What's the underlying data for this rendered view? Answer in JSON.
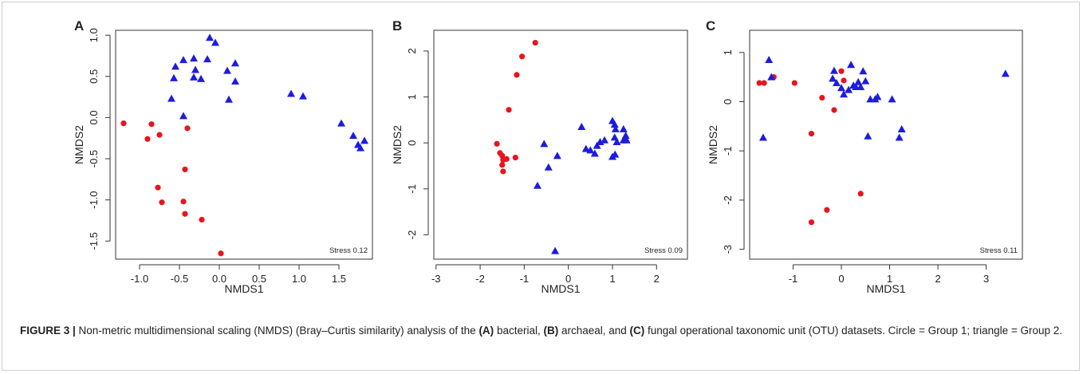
{
  "colors": {
    "group1": "#e8141e",
    "group2": "#1c1ce0"
  },
  "caption": {
    "figure_label": "FIGURE 3 |",
    "p1": " Non-metric multidimensional scaling (NMDS) (Bray–Curtis similarity) analysis of the ",
    "a": "(A)",
    "p2": " bacterial, ",
    "b": "(B)",
    "p3": " archaeal, and ",
    "c": "(C)",
    "p4": " fungal operational taxonomic unit (OTU) datasets. Circle = Group 1; triangle = Group 2."
  },
  "chart_data": [
    {
      "type": "scatter",
      "panel": "A",
      "xlabel": "NMDS1",
      "ylabel": "NMDS2",
      "annotation": "Stress 0.12",
      "xlim": [
        -1.3,
        1.92
      ],
      "ylim": [
        -1.72,
        1.06
      ],
      "xticks": [
        -1.0,
        -0.5,
        0.0,
        0.5,
        1.0,
        1.5
      ],
      "xtick_labels": [
        "-1.0",
        "-0.5",
        "0.0",
        "0.5",
        "1.0",
        "1.5"
      ],
      "yticks": [
        -1.5,
        -1.0,
        -0.5,
        0.0,
        0.5,
        1.0
      ],
      "ytick_labels": [
        "-1.5",
        "-1.0",
        "-0.5",
        "0.0",
        "0.5",
        "1.0"
      ],
      "series": [
        {
          "name": "Group 1",
          "marker": "circle",
          "points": [
            [
              -1.2,
              -0.07
            ],
            [
              -0.85,
              -0.08
            ],
            [
              -0.9,
              -0.26
            ],
            [
              -0.75,
              -0.21
            ],
            [
              -0.4,
              -0.13
            ],
            [
              -0.77,
              -0.85
            ],
            [
              -0.72,
              -1.03
            ],
            [
              -0.43,
              -0.63
            ],
            [
              -0.45,
              -1.02
            ],
            [
              -0.43,
              -1.17
            ],
            [
              -0.22,
              -1.24
            ],
            [
              0.02,
              -1.65
            ]
          ]
        },
        {
          "name": "Group 2",
          "marker": "triangle",
          "points": [
            [
              -0.12,
              0.97
            ],
            [
              -0.05,
              0.91
            ],
            [
              -0.55,
              0.62
            ],
            [
              -0.45,
              0.7
            ],
            [
              -0.57,
              0.48
            ],
            [
              -0.32,
              0.72
            ],
            [
              -0.3,
              0.58
            ],
            [
              -0.32,
              0.49
            ],
            [
              -0.23,
              0.47
            ],
            [
              -0.15,
              0.71
            ],
            [
              0.1,
              0.57
            ],
            [
              0.2,
              0.66
            ],
            [
              0.2,
              0.44
            ],
            [
              -0.6,
              0.23
            ],
            [
              0.12,
              0.22
            ],
            [
              -0.45,
              0.02
            ],
            [
              0.9,
              0.29
            ],
            [
              1.05,
              0.26
            ],
            [
              1.53,
              -0.07
            ],
            [
              1.68,
              -0.22
            ],
            [
              1.74,
              -0.33
            ],
            [
              1.77,
              -0.37
            ],
            [
              1.82,
              -0.28
            ]
          ]
        }
      ]
    },
    {
      "type": "scatter",
      "panel": "B",
      "xlabel": "NMDS1",
      "ylabel": "NMDS2",
      "annotation": "Stress 0.09",
      "xlim": [
        -3.05,
        2.7
      ],
      "ylim": [
        -2.53,
        2.45
      ],
      "xticks": [
        -3,
        -2,
        -1,
        0,
        1,
        2
      ],
      "xtick_labels": [
        "-3",
        "-2",
        "-1",
        "0",
        "1",
        "2"
      ],
      "yticks": [
        -2,
        -1,
        0,
        1,
        2
      ],
      "ytick_labels": [
        "-2",
        "-1",
        "0",
        "1",
        "2"
      ],
      "series": [
        {
          "name": "Group 1",
          "marker": "circle",
          "points": [
            [
              -0.75,
              2.18
            ],
            [
              -1.05,
              1.88
            ],
            [
              -1.17,
              1.48
            ],
            [
              -1.35,
              0.72
            ],
            [
              -1.62,
              -0.02
            ],
            [
              -1.55,
              -0.22
            ],
            [
              -1.5,
              -0.28
            ],
            [
              -1.48,
              -0.37
            ],
            [
              -1.5,
              -0.48
            ],
            [
              -1.48,
              -0.62
            ],
            [
              -1.4,
              -0.35
            ],
            [
              -1.2,
              -0.32
            ]
          ]
        },
        {
          "name": "Group 2",
          "marker": "triangle",
          "points": [
            [
              -0.55,
              -0.02
            ],
            [
              -0.7,
              -0.93
            ],
            [
              -0.45,
              -0.53
            ],
            [
              -0.25,
              -0.28
            ],
            [
              -0.3,
              -2.35
            ],
            [
              0.3,
              0.35
            ],
            [
              0.4,
              -0.13
            ],
            [
              0.5,
              -0.16
            ],
            [
              0.6,
              -0.23
            ],
            [
              0.65,
              -0.06
            ],
            [
              0.72,
              0.02
            ],
            [
              0.82,
              0.06
            ],
            [
              1.0,
              -0.3
            ],
            [
              1.0,
              0.48
            ],
            [
              1.05,
              0.4
            ],
            [
              1.06,
              -0.25
            ],
            [
              1.05,
              0.12
            ],
            [
              1.07,
              0.3
            ],
            [
              1.1,
              0.02
            ],
            [
              1.25,
              0.3
            ],
            [
              1.25,
              0.06
            ],
            [
              1.3,
              0.16
            ],
            [
              1.32,
              0.06
            ]
          ]
        }
      ]
    },
    {
      "type": "scatter",
      "panel": "C",
      "xlabel": "NMDS1",
      "ylabel": "NMDS2",
      "annotation": "Stress 0.11",
      "xlim": [
        -1.9,
        3.75
      ],
      "ylim": [
        -3.2,
        1.45
      ],
      "xticks": [
        -1,
        0,
        1,
        2,
        3
      ],
      "xtick_labels": [
        "-1",
        "0",
        "1",
        "2",
        "3"
      ],
      "yticks": [
        -3,
        -2,
        -1,
        0,
        1
      ],
      "ytick_labels": [
        "-3",
        "-2",
        "-1",
        "0",
        "1"
      ],
      "series": [
        {
          "name": "Group 1",
          "marker": "circle",
          "points": [
            [
              -1.7,
              0.38
            ],
            [
              -1.6,
              0.38
            ],
            [
              -1.4,
              0.5
            ],
            [
              -0.97,
              0.38
            ],
            [
              -0.4,
              0.08
            ],
            [
              -0.15,
              -0.17
            ],
            [
              0.0,
              0.62
            ],
            [
              0.05,
              0.43
            ],
            [
              -0.62,
              -0.65
            ],
            [
              -0.3,
              -2.2
            ],
            [
              0.4,
              -1.87
            ],
            [
              -0.62,
              -2.45
            ]
          ]
        },
        {
          "name": "Group 2",
          "marker": "triangle",
          "points": [
            [
              -1.5,
              0.85
            ],
            [
              -1.45,
              0.5
            ],
            [
              -1.62,
              -0.73
            ],
            [
              -0.15,
              0.63
            ],
            [
              -0.18,
              0.47
            ],
            [
              -0.1,
              0.38
            ],
            [
              0.0,
              0.28
            ],
            [
              0.05,
              0.15
            ],
            [
              0.15,
              0.24
            ],
            [
              0.2,
              0.75
            ],
            [
              0.25,
              0.33
            ],
            [
              0.3,
              0.3
            ],
            [
              0.35,
              0.4
            ],
            [
              0.4,
              0.3
            ],
            [
              0.45,
              0.62
            ],
            [
              0.5,
              0.42
            ],
            [
              0.6,
              0.05
            ],
            [
              0.7,
              0.05
            ],
            [
              0.75,
              0.1
            ],
            [
              0.55,
              -0.7
            ],
            [
              1.05,
              0.05
            ],
            [
              1.2,
              -0.73
            ],
            [
              1.25,
              -0.56
            ],
            [
              3.4,
              0.57
            ]
          ]
        }
      ]
    }
  ]
}
